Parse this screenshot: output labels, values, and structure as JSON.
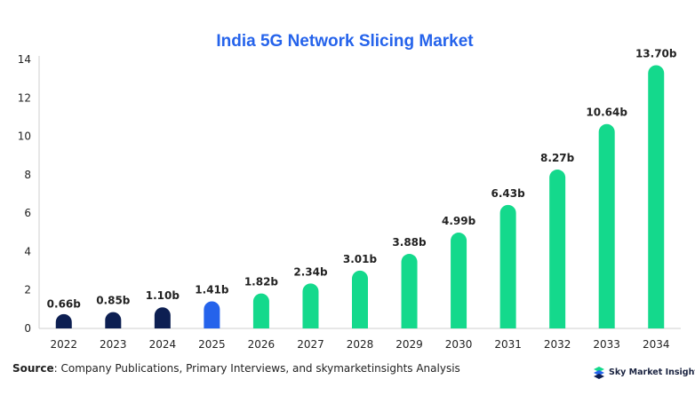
{
  "chart_data": {
    "type": "bar",
    "title": "India 5G Network Slicing Market",
    "categories": [
      "2022",
      "2023",
      "2024",
      "2025",
      "2026",
      "2027",
      "2028",
      "2029",
      "2030",
      "2031",
      "2032",
      "2033",
      "2034"
    ],
    "values": [
      0.66,
      0.85,
      1.1,
      1.41,
      1.82,
      2.34,
      3.01,
      3.88,
      4.99,
      6.43,
      8.27,
      10.64,
      13.7
    ],
    "data_labels": [
      "0.66b",
      "0.85b",
      "1.10b",
      "1.41b",
      "1.82b",
      "2.34b",
      "3.01b",
      "3.88b",
      "4.99b",
      "6.43b",
      "8.27b",
      "10.64b",
      "13.70b"
    ],
    "xlabel": "",
    "ylabel": "",
    "ylim": [
      0,
      14
    ],
    "yticks": [
      0,
      2,
      4,
      6,
      8,
      10,
      12,
      14
    ],
    "grid": false,
    "bar_colors": [
      "#0d1f52",
      "#0d1f52",
      "#0d1f52",
      "#2563eb",
      "#14d98c",
      "#14d98c",
      "#14d98c",
      "#14d98c",
      "#14d98c",
      "#14d98c",
      "#14d98c",
      "#14d98c",
      "#14d98c"
    ]
  },
  "colors": {
    "title": "#2563eb",
    "axis": "#cfcfcf"
  },
  "footer": {
    "source_label": "Source",
    "source_text": ": Company Publications, Primary Interviews, and skymarketinsights Analysis"
  },
  "logo": {
    "text": "Sky Market Insights",
    "icon": "sky-market-insights-logo-icon"
  }
}
